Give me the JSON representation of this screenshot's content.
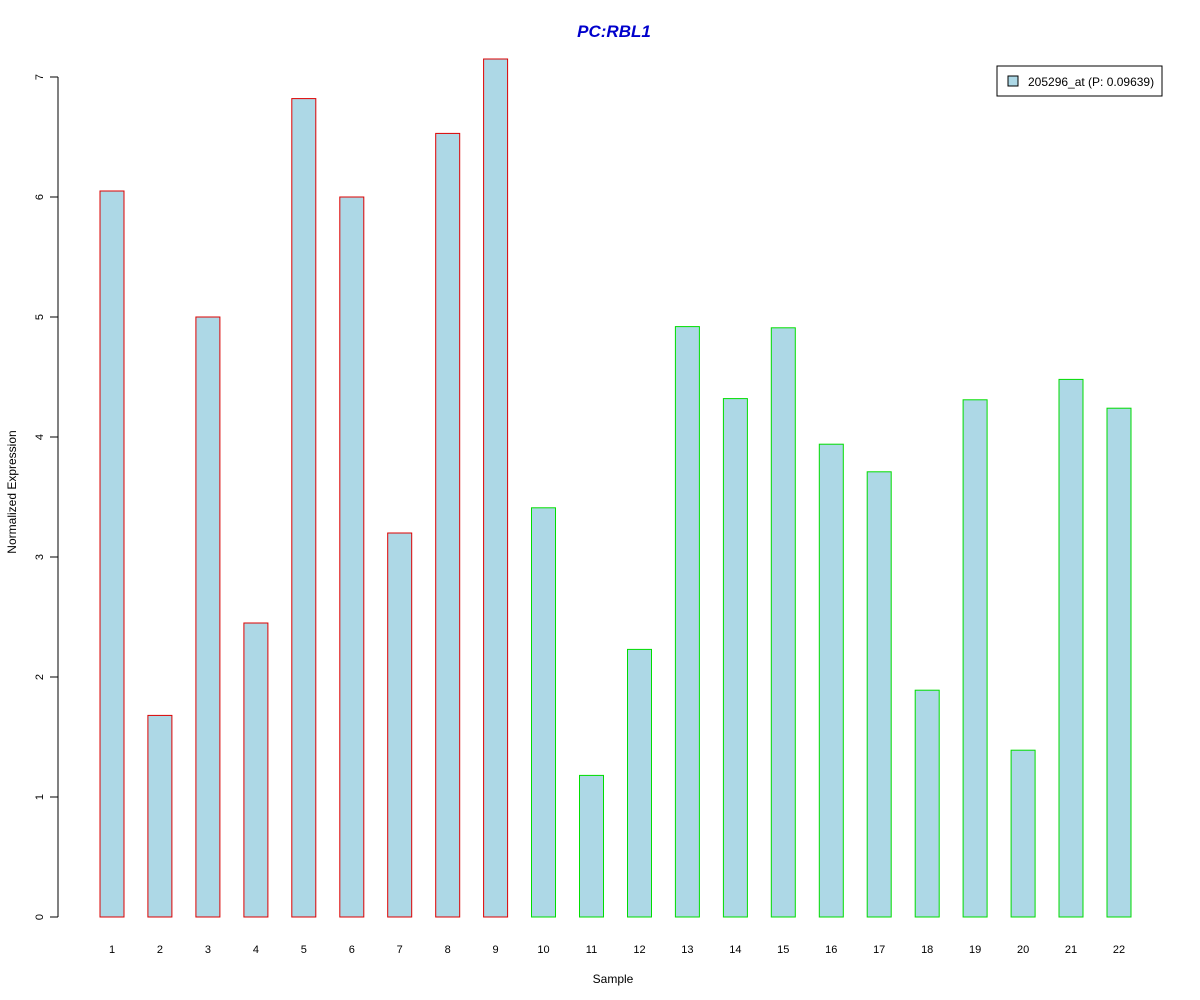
{
  "chart_data": {
    "type": "bar",
    "title": "PC:RBL1",
    "xlabel": "Sample",
    "ylabel": "Normalized Expression",
    "categories": [
      "1",
      "2",
      "3",
      "4",
      "5",
      "6",
      "7",
      "8",
      "9",
      "10",
      "11",
      "12",
      "13",
      "14",
      "15",
      "16",
      "17",
      "18",
      "19",
      "20",
      "21",
      "22"
    ],
    "values": [
      6.05,
      1.68,
      5.0,
      2.45,
      6.82,
      6.0,
      3.2,
      6.53,
      7.15,
      3.41,
      1.18,
      2.23,
      4.92,
      4.32,
      4.91,
      3.94,
      3.71,
      1.89,
      4.31,
      1.39,
      4.48,
      4.24
    ],
    "groups": [
      "red",
      "red",
      "red",
      "red",
      "red",
      "red",
      "red",
      "red",
      "red",
      "green",
      "green",
      "green",
      "green",
      "green",
      "green",
      "green",
      "green",
      "green",
      "green",
      "green",
      "green",
      "green"
    ],
    "yticks": [
      0,
      1,
      2,
      3,
      4,
      5,
      6,
      7
    ],
    "ylim": [
      0,
      7.3
    ],
    "grid": false,
    "legend": {
      "position": "top-right",
      "entries": [
        "205296_at (P: 0.09639)"
      ]
    },
    "colors": {
      "bar_fill": "#add8e6",
      "border_group_red": "#dd0000",
      "border_group_green": "#00dd00",
      "title": "#0000cc"
    }
  }
}
